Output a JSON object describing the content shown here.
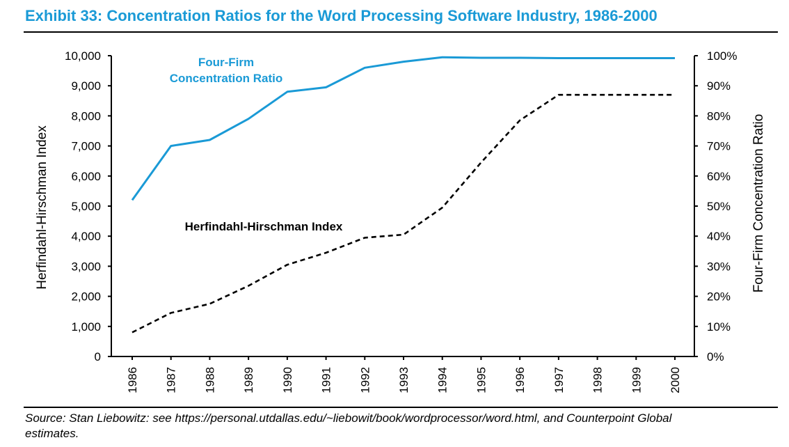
{
  "page": {
    "title": "Exhibit 33: Concentration Ratios for the Word Processing Software Industry, 1986-2000",
    "source_line1": "Source: Stan Liebowitz: see https://personal.utdallas.edu/~liebowit/book/wordprocessor/word.html, and Counterpoint Global",
    "source_line2": "estimates."
  },
  "colors": {
    "accent": "#1a9ad6",
    "hhi_line": "#000000"
  },
  "chart_data": {
    "type": "line",
    "title": "Exhibit 33: Concentration Ratios for the Word Processing Software Industry, 1986-2000",
    "x": [
      1986,
      1987,
      1988,
      1989,
      1990,
      1991,
      1992,
      1993,
      1994,
      1995,
      1996,
      1997,
      1998,
      1999,
      2000
    ],
    "x_tick_labels": [
      "1986",
      "1987",
      "1988",
      "1989",
      "1990",
      "1991",
      "1992",
      "1993",
      "1994",
      "1995",
      "1996",
      "1997",
      "1998",
      "1999",
      "2000"
    ],
    "ylabel_left": "Herfindahl-Hirschman Index",
    "ylabel_right": "Four-Firm Concentration Ratio",
    "ylim_left": [
      0,
      10000
    ],
    "ylim_right": [
      0,
      100
    ],
    "y_tick_labels_left": [
      "0",
      "1,000",
      "2,000",
      "3,000",
      "4,000",
      "5,000",
      "6,000",
      "7,000",
      "8,000",
      "9,000",
      "10,000"
    ],
    "y_tick_labels_right": [
      "0%",
      "10%",
      "20%",
      "30%",
      "40%",
      "50%",
      "60%",
      "70%",
      "80%",
      "90%",
      "100%"
    ],
    "grid": false,
    "series": [
      {
        "name": "Four-Firm Concentration Ratio",
        "label_line1": "Four-Firm",
        "label_line2": "Concentration Ratio",
        "axis": "right",
        "unit": "%",
        "style": "solid",
        "color": "#1a9ad6",
        "values": [
          52,
          70,
          72,
          79,
          88,
          89.5,
          96,
          98,
          99.5,
          99.3,
          99.3,
          99.2,
          99.2,
          99.2,
          99.2
        ]
      },
      {
        "name": "Herfindahl-Hirschman Index",
        "label_line1": "Herfindahl-Hirschman Index",
        "axis": "left",
        "style": "dashed",
        "color": "#000000",
        "values": [
          800,
          1450,
          1750,
          2350,
          3050,
          3450,
          3950,
          4050,
          4950,
          6450,
          7850,
          8700,
          8700,
          8700,
          8700
        ]
      }
    ]
  }
}
